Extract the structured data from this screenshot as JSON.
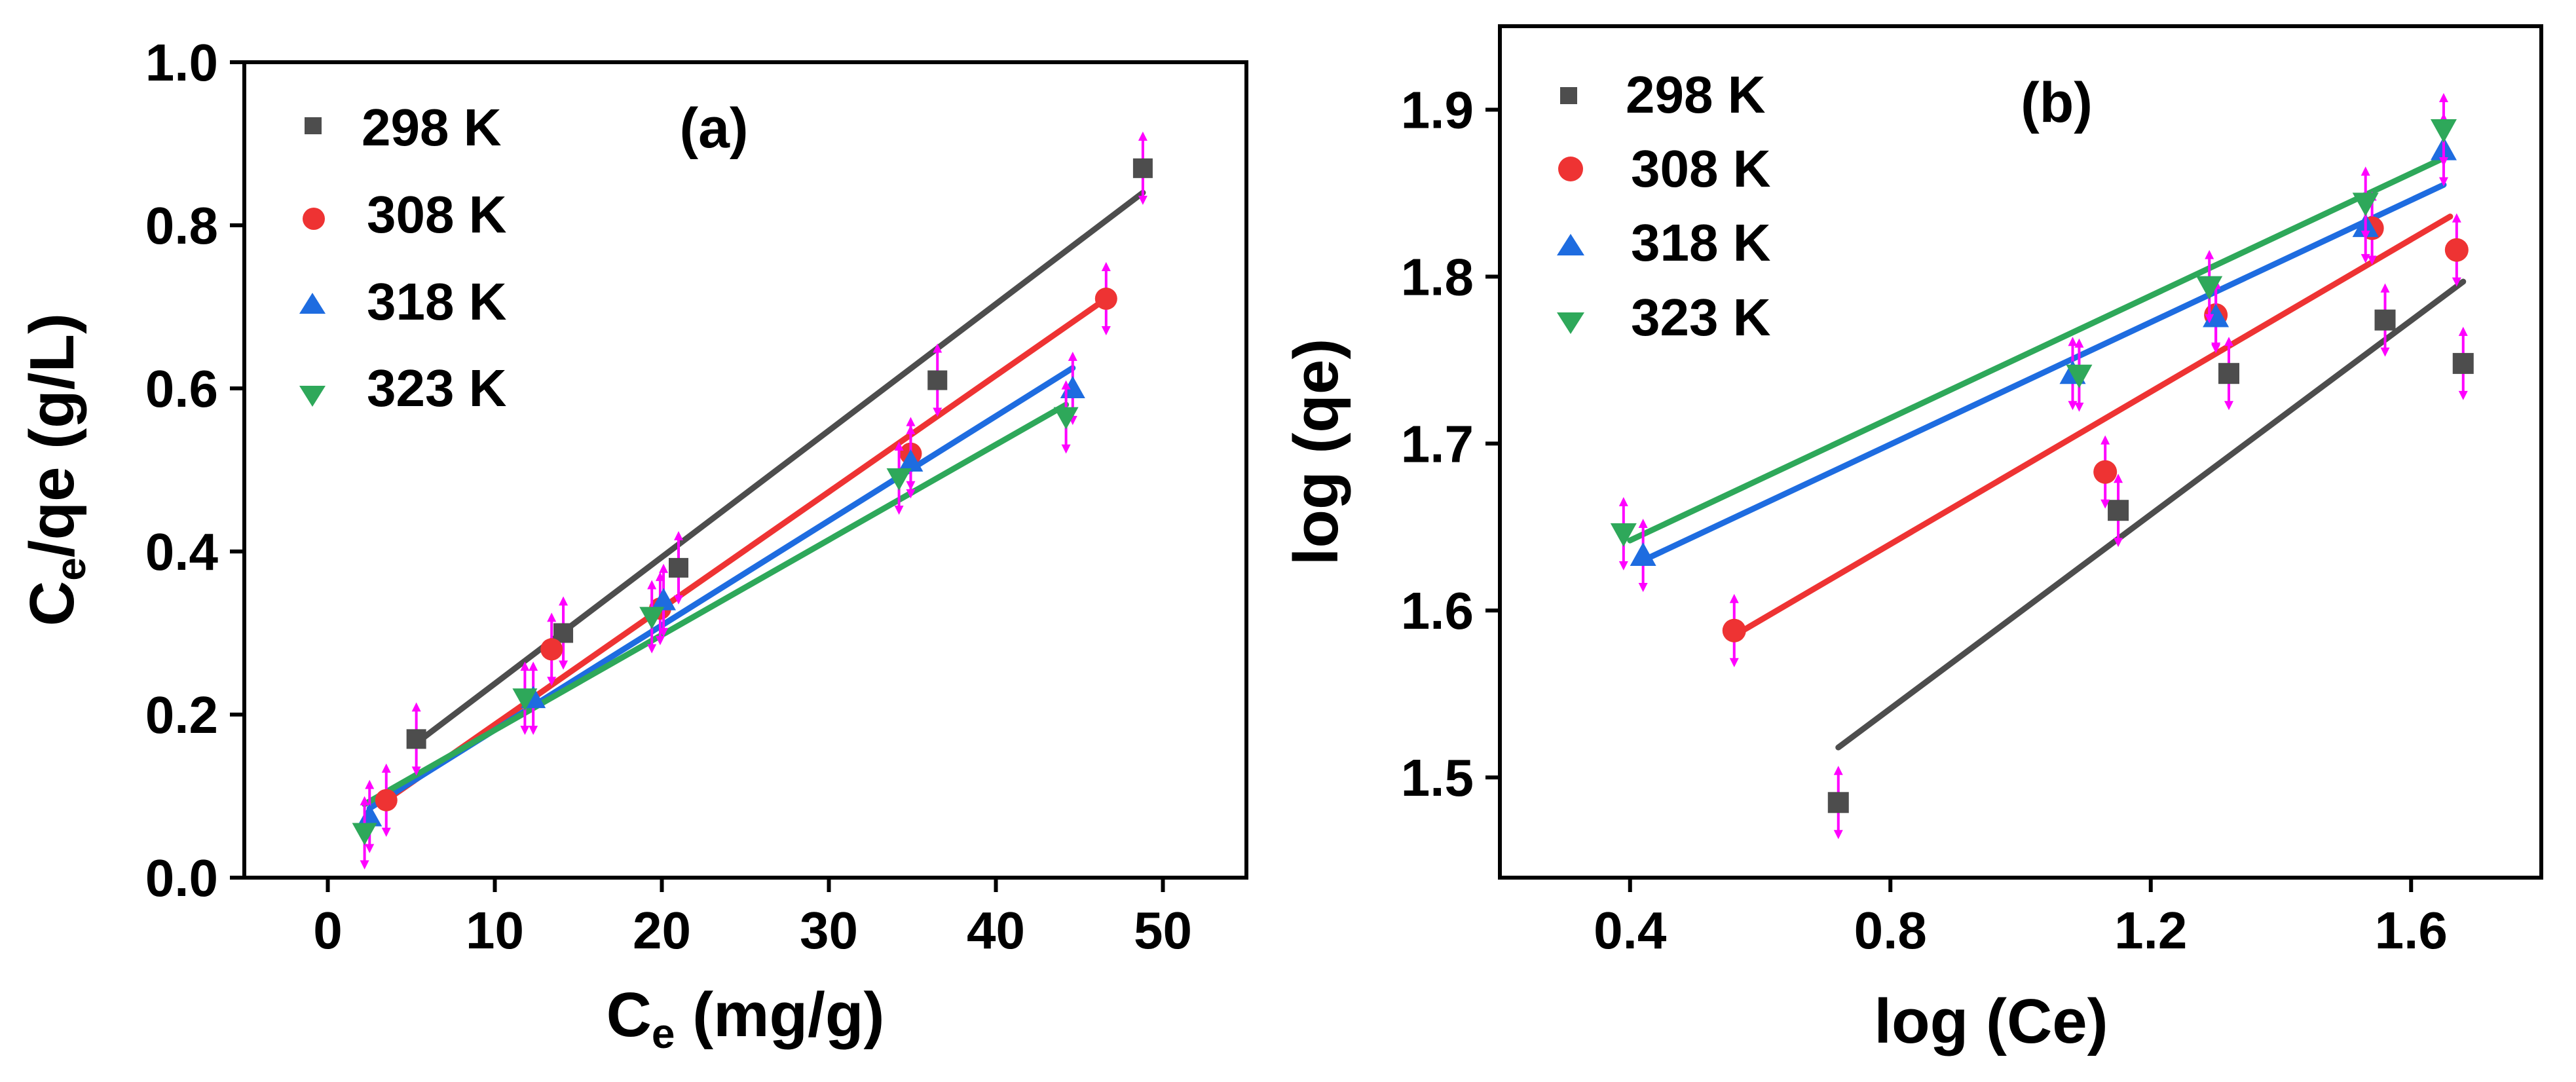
{
  "chart_data": [
    {
      "panel": "(a)",
      "type": "scatter",
      "title": "",
      "xlabel": {
        "main": "C",
        "sub": "e",
        "rest": " (mg/g)"
      },
      "ylabel": {
        "main": "C",
        "sub": "e",
        "rest": "/qe (g/L)"
      },
      "xlim": [
        -5,
        55
      ],
      "ylim": [
        0.0,
        1.0
      ],
      "xticks": [
        0,
        10,
        20,
        30,
        40,
        50
      ],
      "xtick_labels": [
        "0",
        "10",
        "20",
        "30",
        "40",
        "50"
      ],
      "yticks": [
        0.0,
        0.2,
        0.4,
        0.6,
        0.8,
        1.0
      ],
      "ytick_labels": [
        "0.0",
        "0.2",
        "0.4",
        "0.6",
        "0.8",
        "1.0"
      ],
      "legend_position": "top-left",
      "error_bar_color": "#ff00ff",
      "series": [
        {
          "name": "298 K",
          "color": "#4d4d4d",
          "marker": "square",
          "x": [
            5.3,
            14.1,
            21.0,
            36.5,
            48.8
          ],
          "y": [
            0.17,
            0.3,
            0.38,
            0.61,
            0.87
          ],
          "fit": [
            [
              5.3,
              0.165
            ],
            [
              48.8,
              0.84
            ]
          ]
        },
        {
          "name": "308 K",
          "color": "#ee3333",
          "marker": "circle",
          "x": [
            3.5,
            13.4,
            19.9,
            34.9,
            46.6
          ],
          "y": [
            0.095,
            0.28,
            0.33,
            0.52,
            0.71
          ],
          "fit": [
            [
              3.5,
              0.095
            ],
            [
              46.6,
              0.71
            ]
          ]
        },
        {
          "name": "318 K",
          "color": "#1e6ce0",
          "marker": "triangle-up",
          "x": [
            2.5,
            12.3,
            20.1,
            34.9,
            44.6
          ],
          "y": [
            0.075,
            0.22,
            0.34,
            0.51,
            0.6
          ],
          "fit": [
            [
              2.5,
              0.085
            ],
            [
              44.6,
              0.625
            ]
          ]
        },
        {
          "name": "323 K",
          "color": "#2ea85a",
          "marker": "triangle-down",
          "x": [
            2.2,
            11.8,
            19.4,
            34.2,
            44.2
          ],
          "y": [
            0.055,
            0.22,
            0.32,
            0.49,
            0.565
          ],
          "fit": [
            [
              2.2,
              0.09
            ],
            [
              44.2,
              0.58
            ]
          ]
        }
      ]
    },
    {
      "panel": "(b)",
      "type": "scatter",
      "title": "",
      "xlabel": {
        "main": "log (Ce)",
        "sub": "",
        "rest": ""
      },
      "ylabel": {
        "main": "log (qe)",
        "sub": "",
        "rest": ""
      },
      "xlim": [
        0.2,
        1.8
      ],
      "ylim": [
        1.44,
        1.95
      ],
      "xticks": [
        0.4,
        0.8,
        1.2,
        1.6
      ],
      "xtick_labels": [
        "0.4",
        "0.8",
        "1.2",
        "1.6"
      ],
      "yticks": [
        1.5,
        1.6,
        1.7,
        1.8,
        1.9
      ],
      "ytick_labels": [
        "1.5",
        "1.6",
        "1.7",
        "1.8",
        "1.9"
      ],
      "legend_position": "top-left",
      "error_bar_color": "#ff00ff",
      "series": [
        {
          "name": "298 K",
          "color": "#4d4d4d",
          "marker": "square",
          "x": [
            0.72,
            1.15,
            1.32,
            1.56,
            1.68
          ],
          "y": [
            1.485,
            1.66,
            1.742,
            1.774,
            1.748
          ],
          "fit": [
            [
              0.72,
              1.518
            ],
            [
              1.68,
              1.797
            ]
          ]
        },
        {
          "name": "308 K",
          "color": "#ee3333",
          "marker": "circle",
          "x": [
            0.56,
            1.13,
            1.3,
            1.54,
            1.67
          ],
          "y": [
            1.588,
            1.683,
            1.777,
            1.829,
            1.816
          ],
          "fit": [
            [
              0.56,
              1.585
            ],
            [
              1.66,
              1.836
            ]
          ]
        },
        {
          "name": "318 K",
          "color": "#1e6ce0",
          "marker": "triangle-up",
          "x": [
            0.42,
            1.08,
            1.3,
            1.53,
            1.65
          ],
          "y": [
            1.633,
            1.742,
            1.776,
            1.83,
            1.876
          ],
          "fit": [
            [
              0.42,
              1.63
            ],
            [
              1.65,
              1.855
            ]
          ]
        },
        {
          "name": "323 K",
          "color": "#2ea85a",
          "marker": "triangle-down",
          "x": [
            0.39,
            1.09,
            1.29,
            1.53,
            1.65
          ],
          "y": [
            1.646,
            1.741,
            1.794,
            1.844,
            1.888
          ],
          "fit": [
            [
              0.4,
              1.642
            ],
            [
              1.65,
              1.871
            ]
          ]
        }
      ]
    }
  ]
}
